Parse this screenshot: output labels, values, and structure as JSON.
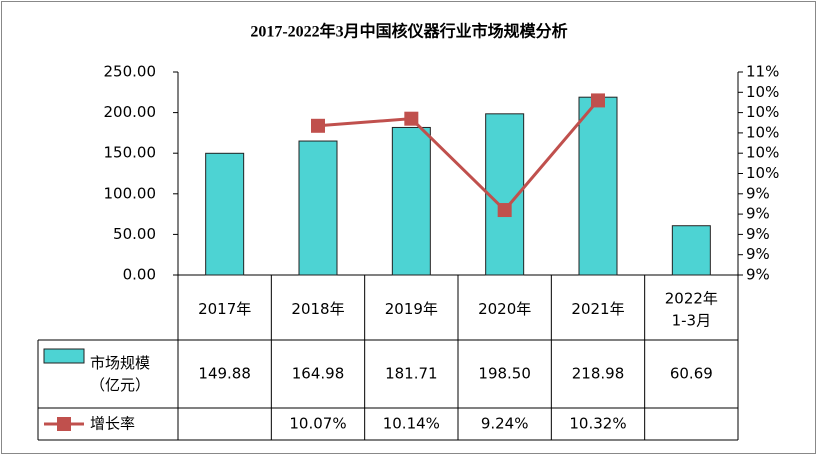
{
  "chart_data": {
    "type": "bar",
    "title": "2017-2022年3月中国核仪器行业市场规模分析",
    "categories": [
      "2017年",
      "2018年",
      "2019年",
      "2020年",
      "2021年",
      "2022年\n1-3月"
    ],
    "series": [
      {
        "name": "市场规模\n（亿元）",
        "type": "bar",
        "color": "#4dd3d3",
        "values": [
          149.88,
          164.98,
          181.71,
          198.5,
          218.98,
          60.69
        ],
        "value_labels": [
          "149.88",
          "164.98",
          "181.71",
          "198.50",
          "218.98",
          "60.69"
        ]
      },
      {
        "name": "增长率",
        "type": "line",
        "axis": "y2",
        "color": "#c0504d",
        "values": [
          null,
          10.07,
          10.14,
          9.24,
          10.32,
          null
        ],
        "value_labels": [
          null,
          "10.07%",
          "10.14%",
          "9.24%",
          "10.32%",
          null
        ]
      }
    ],
    "ylim": [
      0,
      250
    ],
    "yticks": [
      {
        "value": 0,
        "label": "0.00"
      },
      {
        "value": 50,
        "label": "50.00"
      },
      {
        "value": 100,
        "label": "100.00"
      },
      {
        "value": 150,
        "label": "150.00"
      },
      {
        "value": 200,
        "label": "200.00"
      },
      {
        "value": 250,
        "label": "250.00"
      }
    ],
    "y2lim": [
      8.6,
      10.6
    ],
    "y2ticks": [
      {
        "value": 8.6,
        "label": "9%"
      },
      {
        "value": 8.8,
        "label": "9%"
      },
      {
        "value": 9.0,
        "label": "9%"
      },
      {
        "value": 9.2,
        "label": "9%"
      },
      {
        "value": 9.4,
        "label": "9%"
      },
      {
        "value": 9.6,
        "label": "10%"
      },
      {
        "value": 9.8,
        "label": "10%"
      },
      {
        "value": 10.0,
        "label": "10%"
      },
      {
        "value": 10.2,
        "label": "10%"
      },
      {
        "value": 10.4,
        "label": "10%"
      },
      {
        "value": 10.6,
        "label": "11%"
      }
    ],
    "grid": false
  }
}
